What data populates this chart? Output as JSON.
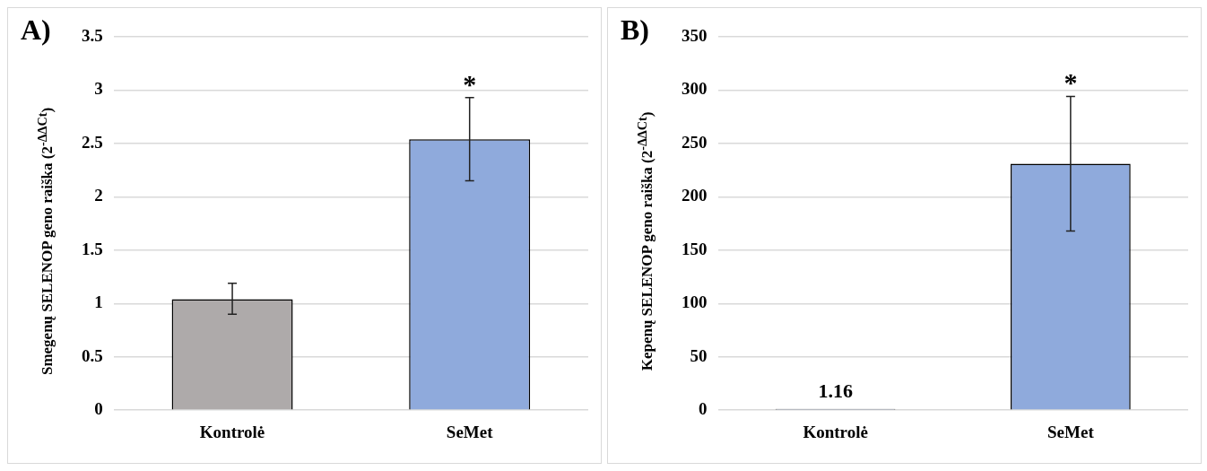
{
  "chart_data": [
    {
      "type": "bar",
      "title": "A)",
      "ylabel": "Smegenų SELENOP geno raiška (2$^{-ΔΔCt}$)",
      "categories": [
        "Kontrolė",
        "SeMet"
      ],
      "values": [
        1.04,
        2.54
      ],
      "colors": [
        "#aeaaaa",
        "#8faadc"
      ],
      "errors": [
        [
          0.9,
          1.19
        ],
        [
          2.15,
          2.93
        ]
      ],
      "ylim": [
        0,
        3.5
      ],
      "yticks": [
        0,
        0.5,
        1,
        1.5,
        2,
        2.5,
        3,
        3.5
      ],
      "grid": "y",
      "annotations": [
        {
          "text": "*",
          "x": "SeMet",
          "y": 2.93
        }
      ]
    },
    {
      "type": "bar",
      "title": "B)",
      "ylabel": "Kepenų SELENOP geno raiška (2$^{-ΔΔCt}$)",
      "categories": [
        "Kontrolė",
        "SeMet"
      ],
      "values": [
        1.16,
        231
      ],
      "colors": [
        "#8faadc",
        "#8faadc"
      ],
      "errors": [
        null,
        [
          168,
          294
        ]
      ],
      "value_labels": [
        "1.16",
        null
      ],
      "ylim": [
        0,
        350
      ],
      "yticks": [
        0,
        50,
        100,
        150,
        200,
        250,
        300,
        350
      ],
      "grid": "y",
      "annotations": [
        {
          "text": "*",
          "x": "SeMet",
          "y": 294
        }
      ]
    }
  ]
}
